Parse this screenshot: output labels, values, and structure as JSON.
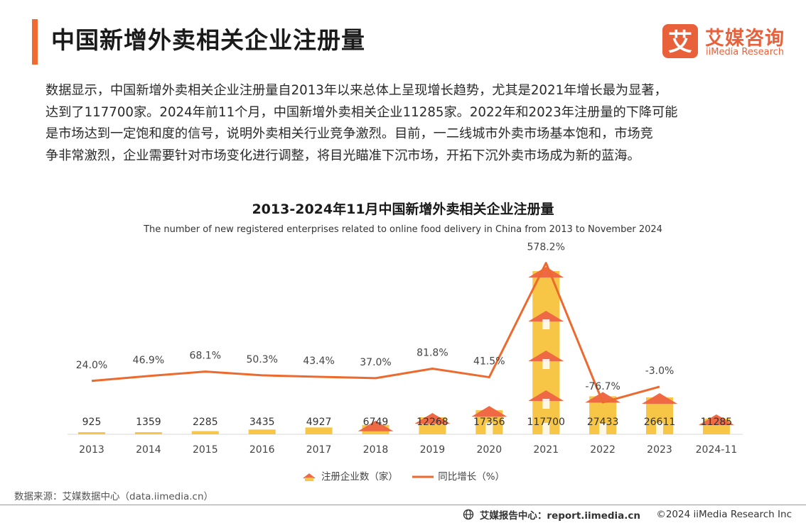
{
  "page": {
    "title": "中国新增外卖相关企业注册量",
    "intro_lines": [
      "数据显示，中国新增外卖相关企业注册量自2013年以来总体上呈现增长趋势，尤其是2021年增长最为显著，",
      "达到了117700家。2024年前11个月，中国新增外卖相关企业11285家。2022年和2023年注册量的下降可能",
      "是市场达到一定饱和度的信号，说明外卖相关行业竞争激烈。目前，一二线城市外卖市场基本饱和，市场竞",
      "争非常激烈，企业需要针对市场变化进行调整，将目光瞄准下沉市场，开拓下沉外卖市场成为新的蓝海。"
    ]
  },
  "logo": {
    "cn": "艾媒咨询",
    "en": "iiMedia Research",
    "badge_char": "艾"
  },
  "chart_data": {
    "type": "bar",
    "title": "2013-2024年11月中国新增外卖相关企业注册量",
    "subtitle": "The number of new registered enterprises related to online food delivery in China from 2013 to November 2024",
    "categories": [
      "2013",
      "2014",
      "2015",
      "2016",
      "2017",
      "2018",
      "2019",
      "2020",
      "2021",
      "2022",
      "2023",
      "2024-11"
    ],
    "series": [
      {
        "name": "注册企业数（家）",
        "type": "bar",
        "values": [
          925,
          1359,
          2285,
          3435,
          4927,
          6749,
          12268,
          17356,
          117700,
          27433,
          26611,
          11285
        ],
        "labels": [
          "925",
          "1359",
          "2285",
          "3435",
          "4927",
          "6749",
          "12268",
          "17356",
          "117700",
          "27433",
          "26611",
          "11285"
        ]
      },
      {
        "name": "同比增长（%）",
        "type": "line",
        "values": [
          24.0,
          46.9,
          68.1,
          50.3,
          43.4,
          37.0,
          81.8,
          41.5,
          578.2,
          -76.7,
          -3.0,
          null
        ],
        "labels": [
          "24.0%",
          "46.9%",
          "68.1%",
          "50.3%",
          "43.4%",
          "37.0%",
          "81.8%",
          "41.5%",
          "578.2%",
          "-76.7%",
          "-3.0%",
          ""
        ]
      }
    ],
    "legend_position": "bottom",
    "grid": false
  },
  "colors": {
    "accent": "#f06a32",
    "bar": "#f8c646",
    "roof": "#ef6a44",
    "line": "#ed6a2f",
    "brand": "#e8613a"
  },
  "source": "数据来源：艾媒数据中心（data.iimedia.cn）",
  "footer": {
    "site": "艾媒报告中心：report.iimedia.cn",
    "copyright": "©2024  iiMedia Research  Inc"
  }
}
